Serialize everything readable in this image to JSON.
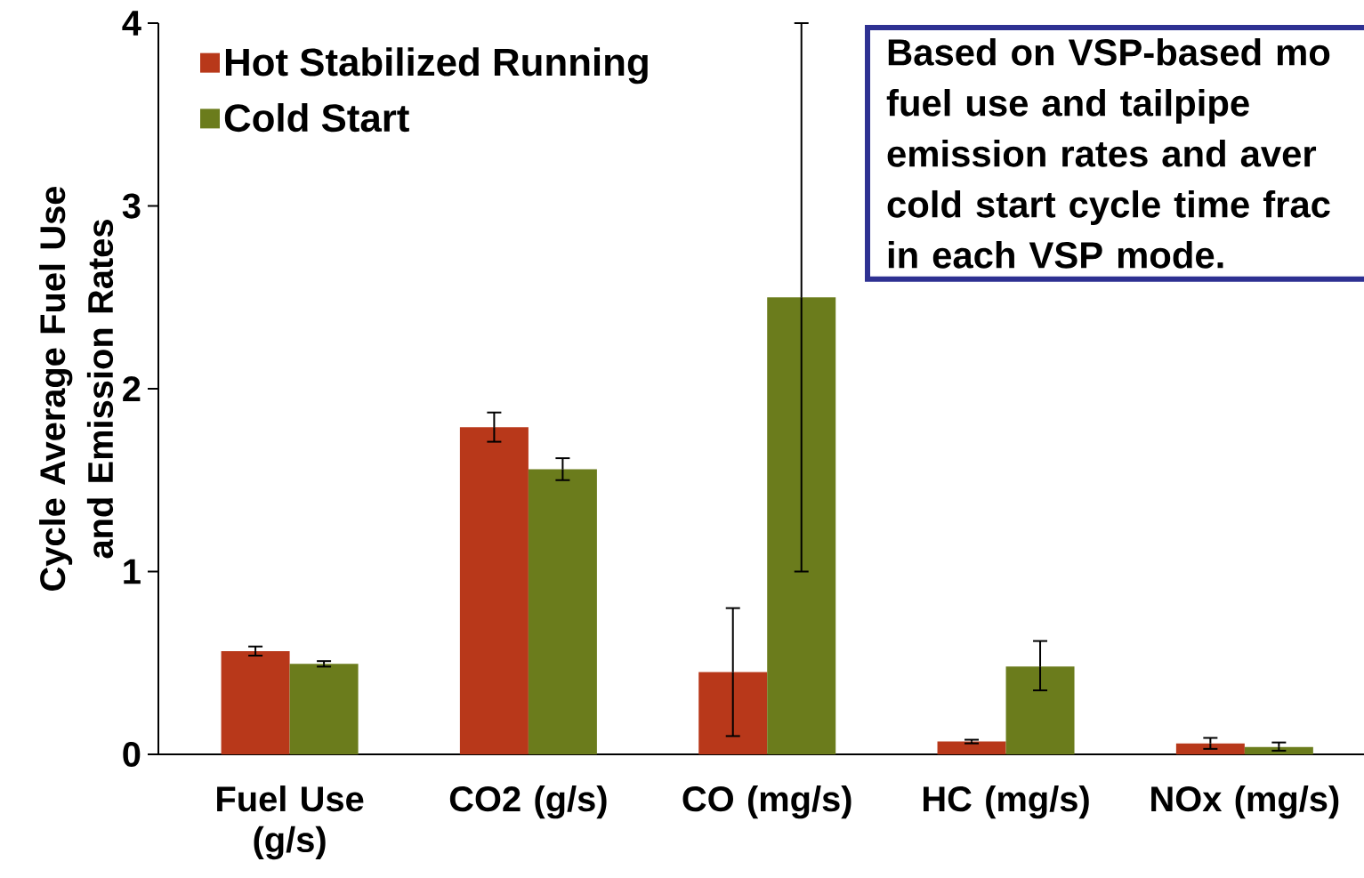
{
  "chart_data": {
    "type": "bar",
    "categories": [
      "Fuel Use (g/s)",
      "CO2 (g/s)",
      "CO (mg/s)",
      "HC (mg/s)",
      "NOx (mg/s)"
    ],
    "series": [
      {
        "name": "Hot Stabilized Running",
        "color": "#b8381a",
        "values": [
          0.565,
          1.79,
          0.45,
          0.07,
          0.06
        ],
        "errors": [
          [
            0.54,
            0.59
          ],
          [
            1.71,
            1.87
          ],
          [
            0.1,
            0.8
          ],
          [
            0.06,
            0.08
          ],
          [
            0.03,
            0.09
          ]
        ]
      },
      {
        "name": "Cold Start",
        "color": "#6b7c1c",
        "values": [
          0.495,
          1.56,
          2.5,
          0.48,
          0.04
        ],
        "errors": [
          [
            0.48,
            0.51
          ],
          [
            1.5,
            1.62
          ],
          [
            1.0,
            4.0
          ],
          [
            0.35,
            0.62
          ],
          [
            0.02,
            0.065
          ]
        ]
      }
    ],
    "ylabel": "Cycle Average Fuel Use and Emission Rates",
    "ylim": [
      0,
      4
    ],
    "yticks": [
      0,
      1,
      2,
      3,
      4
    ],
    "legend": "top left",
    "annotations": [
      "Based on VSP-based mo",
      "fuel use and tailpipe",
      "emission rates and aver",
      "cold start cycle time frac",
      "in each VSP mode."
    ]
  }
}
